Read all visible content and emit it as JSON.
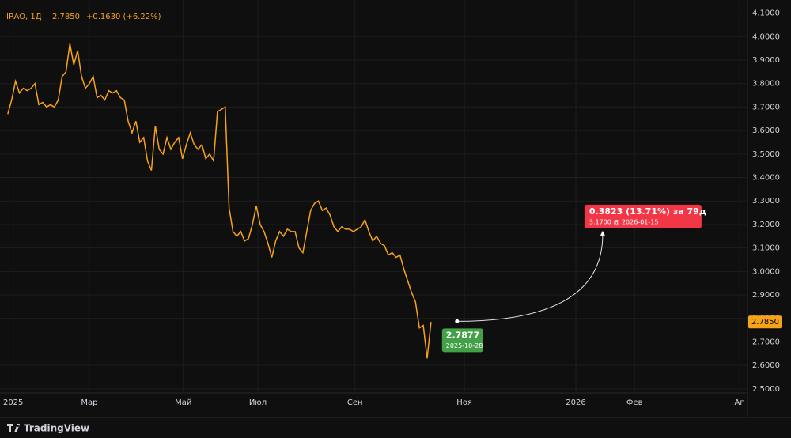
{
  "chart_data": {
    "type": "line",
    "header": {
      "symbol": "IRAO, 1Д",
      "price": "2.7850",
      "change": "+0.1630 (+6.22%)"
    },
    "series": [
      {
        "color": "#f7a21b",
        "values": [
          3.67,
          3.73,
          3.81,
          3.76,
          3.78,
          3.77,
          3.78,
          3.8,
          3.71,
          3.72,
          3.7,
          3.71,
          3.7,
          3.73,
          3.83,
          3.85,
          3.97,
          3.88,
          3.94,
          3.83,
          3.78,
          3.8,
          3.83,
          3.74,
          3.75,
          3.73,
          3.77,
          3.76,
          3.77,
          3.74,
          3.73,
          3.64,
          3.59,
          3.64,
          3.55,
          3.57,
          3.47,
          3.43,
          3.62,
          3.52,
          3.5,
          3.57,
          3.52,
          3.55,
          3.57,
          3.48,
          3.54,
          3.59,
          3.54,
          3.52,
          3.54,
          3.48,
          3.5,
          3.47,
          3.68,
          3.69,
          3.7,
          3.27,
          3.17,
          3.15,
          3.17,
          3.13,
          3.14,
          3.2,
          3.28,
          3.2,
          3.17,
          3.12,
          3.06,
          3.13,
          3.17,
          3.15,
          3.18,
          3.17,
          3.17,
          3.1,
          3.08,
          3.17,
          3.26,
          3.29,
          3.3,
          3.26,
          3.27,
          3.24,
          3.19,
          3.17,
          3.19,
          3.18,
          3.18,
          3.17,
          3.18,
          3.19,
          3.22,
          3.17,
          3.13,
          3.15,
          3.12,
          3.11,
          3.07,
          3.08,
          3.06,
          3.07,
          3.01,
          2.96,
          2.91,
          2.87,
          2.76,
          2.77,
          2.63,
          2.785
        ]
      }
    ],
    "xlim": [
      -2,
      190.5
    ],
    "xticks": [
      {
        "value": 1.4,
        "label": "2025"
      },
      {
        "value": 21,
        "label": "Мар"
      },
      {
        "value": 45.2,
        "label": "Май"
      },
      {
        "value": 64.4,
        "label": "Июл"
      },
      {
        "value": 89.4,
        "label": "Сен"
      },
      {
        "value": 117.6,
        "label": "Ноя"
      },
      {
        "value": 146.3,
        "label": "2026"
      },
      {
        "value": 161.4,
        "label": "Фев"
      },
      {
        "value": 188.5,
        "label": "Ап"
      }
    ],
    "ylim": [
      2.4828,
      4.1558
    ],
    "yticks": [
      {
        "value": 2.5,
        "label": "2.5000"
      },
      {
        "value": 2.6,
        "label": "2.6000"
      },
      {
        "value": 2.7,
        "label": "2.7000"
      },
      {
        "value": 2.8,
        "label": "2.8000"
      },
      {
        "value": 2.9,
        "label": "2.9000"
      },
      {
        "value": 3.0,
        "label": "3.0000"
      },
      {
        "value": 3.1,
        "label": "3.1000"
      },
      {
        "value": 3.2,
        "label": "3.2000"
      },
      {
        "value": 3.3,
        "label": "3.3000"
      },
      {
        "value": 3.4,
        "label": "3.4000"
      },
      {
        "value": 3.5,
        "label": "3.5000"
      },
      {
        "value": 3.6,
        "label": "3.6000"
      },
      {
        "value": 3.7,
        "label": "3.7000"
      },
      {
        "value": 3.8,
        "label": "3.8000"
      },
      {
        "value": 3.9,
        "label": "3.9000"
      },
      {
        "value": 4.0,
        "label": "4.0000"
      },
      {
        "value": 4.1,
        "label": "4.1000"
      }
    ],
    "grid": true,
    "projection": {
      "start": {
        "x": 115.7,
        "value": 2.7877,
        "label": "2.7877",
        "date": "2025-10-28"
      },
      "end": {
        "x": 153.2,
        "value": 3.17,
        "label": "0.3823 (13.71%) за 79д",
        "detail": "3.1700 @ 2026-01-15"
      }
    },
    "brand": "TradingView"
  }
}
